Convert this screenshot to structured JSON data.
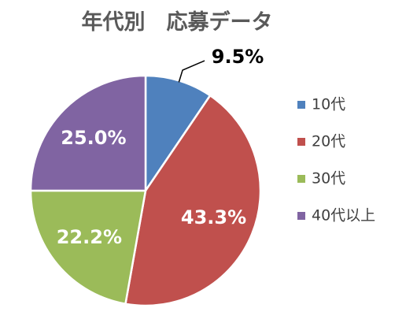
{
  "chart_data": {
    "type": "pie",
    "title": "年代別　応募データ",
    "categories": [
      "10代",
      "20代",
      "30代",
      "40代以上"
    ],
    "values": [
      9.5,
      43.3,
      22.2,
      25.0
    ],
    "data_labels": [
      "9.5%",
      "43.3%",
      "22.2%",
      "25.0%"
    ],
    "colors": [
      "#4F81BD",
      "#C0504D",
      "#9BBB59",
      "#8064A2"
    ],
    "legend_position": "right"
  }
}
